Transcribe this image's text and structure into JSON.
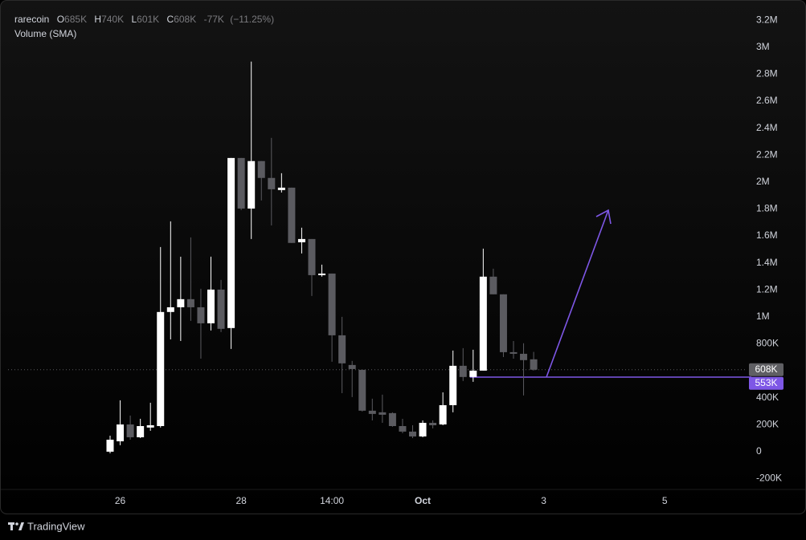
{
  "chart_data": {
    "type": "candlestick",
    "indicator": "Volume (SMA)",
    "ohlc_legend": {
      "open_key": "O",
      "open": "685K",
      "high_key": "H",
      "high": "740K",
      "low_key": "L",
      "low": "601K",
      "close_key": "C",
      "close": "608K",
      "change": "-77K",
      "change_percent": "(−11.25%)"
    },
    "categories": [
      null,
      "26",
      null,
      null,
      null,
      null,
      null,
      null,
      null,
      null,
      null,
      null,
      null,
      "28",
      null,
      null,
      null,
      null,
      null,
      null,
      null,
      null,
      "14:00",
      null,
      null,
      null,
      null,
      null,
      null,
      null,
      null,
      "Oct",
      null,
      null,
      null,
      null,
      null,
      null,
      null,
      null,
      null,
      null,
      null,
      "3",
      null,
      null,
      null,
      null,
      null,
      null,
      null,
      null,
      null,
      null,
      null,
      "5",
      null,
      null,
      null,
      null,
      null,
      null,
      null
    ],
    "series": [
      {
        "name": "rarecoin",
        "up_color": "#ffffff",
        "down_color": "#5b5b60",
        "open": [
          0,
          77000,
          202000,
          107000,
          179000,
          190000,
          1036000,
          1071000,
          1131000,
          1071000,
          952000,
          1202000,
          917000,
          2178000,
          1803000,
          2155000,
          2030000,
          1940000,
          1958000,
          1553000,
          1577000,
          1309000,
          1321000,
          863000,
          643000,
          607000,
          304000,
          292000,
          286000,
          190000,
          149000,
          113000,
          214000,
          202000,
          345000,
          637000,
          554000,
          601000,
          1298000,
          1167000,
          738000,
          726000,
          685000,
          null,
          null,
          null,
          null,
          null,
          null,
          null,
          null,
          null,
          null,
          null,
          null,
          null,
          null,
          null,
          null,
          null,
          null,
          null,
          null
        ],
        "high": [
          119000,
          381000,
          268000,
          244000,
          363000,
          1518000,
          1708000,
          1446000,
          1589000,
          1208000,
          1446000,
          1274000,
          2178000,
          2178000,
          2893000,
          2155000,
          2327000,
          2065000,
          1958000,
          1661000,
          1577000,
          1387000,
          1321000,
          1000000,
          673000,
          607000,
          393000,
          423000,
          292000,
          244000,
          196000,
          232000,
          232000,
          440000,
          750000,
          768000,
          756000,
          1506000,
          1357000,
          1167000,
          821000,
          804000,
          740000,
          null,
          null,
          null,
          null,
          null,
          null,
          null,
          null,
          null,
          null,
          null,
          null,
          null,
          null,
          null,
          null,
          null,
          null,
          null,
          null
        ],
        "low": [
          -12000,
          48000,
          89000,
          101000,
          155000,
          179000,
          833000,
          821000,
          970000,
          690000,
          899000,
          887000,
          762000,
          1792000,
          1577000,
          1863000,
          1678000,
          1922000,
          1548000,
          1470000,
          1155000,
          1298000,
          667000,
          434000,
          405000,
          298000,
          232000,
          214000,
          185000,
          137000,
          101000,
          107000,
          173000,
          196000,
          292000,
          524000,
          518000,
          601000,
          1167000,
          702000,
          690000,
          417000,
          601000,
          null,
          null,
          null,
          null,
          null,
          null,
          null,
          null,
          null,
          null,
          null,
          null,
          null,
          null,
          null,
          null,
          null,
          null,
          null,
          null
        ],
        "close": [
          89000,
          202000,
          107000,
          190000,
          196000,
          1036000,
          1071000,
          1131000,
          1071000,
          952000,
          1202000,
          911000,
          2178000,
          1803000,
          2155000,
          2030000,
          1946000,
          1958000,
          1548000,
          1577000,
          1309000,
          1321000,
          863000,
          655000,
          613000,
          304000,
          280000,
          274000,
          190000,
          149000,
          113000,
          214000,
          196000,
          345000,
          637000,
          554000,
          601000,
          1298000,
          1167000,
          738000,
          726000,
          679000,
          608000,
          null,
          null,
          null,
          null,
          null,
          null,
          null,
          null,
          null,
          null,
          null,
          null,
          null,
          null,
          null,
          null,
          null,
          null,
          null,
          null
        ]
      }
    ],
    "ylim": [
      -280000,
      3290000
    ],
    "yticks": [
      {
        "value": 3200000,
        "label": "3.2M"
      },
      {
        "value": 3000000,
        "label": "3M"
      },
      {
        "value": 2800000,
        "label": "2.8M"
      },
      {
        "value": 2600000,
        "label": "2.6M"
      },
      {
        "value": 2400000,
        "label": "2.4M"
      },
      {
        "value": 2200000,
        "label": "2.2M"
      },
      {
        "value": 2000000,
        "label": "2M"
      },
      {
        "value": 1800000,
        "label": "1.8M"
      },
      {
        "value": 1600000,
        "label": "1.6M"
      },
      {
        "value": 1400000,
        "label": "1.4M"
      },
      {
        "value": 1200000,
        "label": "1.2M"
      },
      {
        "value": 1000000,
        "label": "1M"
      },
      {
        "value": 800000,
        "label": "800K"
      },
      {
        "value": 400000,
        "label": "400K"
      },
      {
        "value": 200000,
        "label": "200K"
      },
      0,
      {
        "value": -200000,
        "label": "-200K"
      }
    ],
    "last_price": {
      "value": 608000,
      "label": "608K",
      "color": "#5f5f63"
    },
    "horizontal_line": {
      "value": 553000,
      "label": "553K",
      "color": "#7e57e6"
    }
  },
  "footer": {
    "brand": "TradingView"
  }
}
